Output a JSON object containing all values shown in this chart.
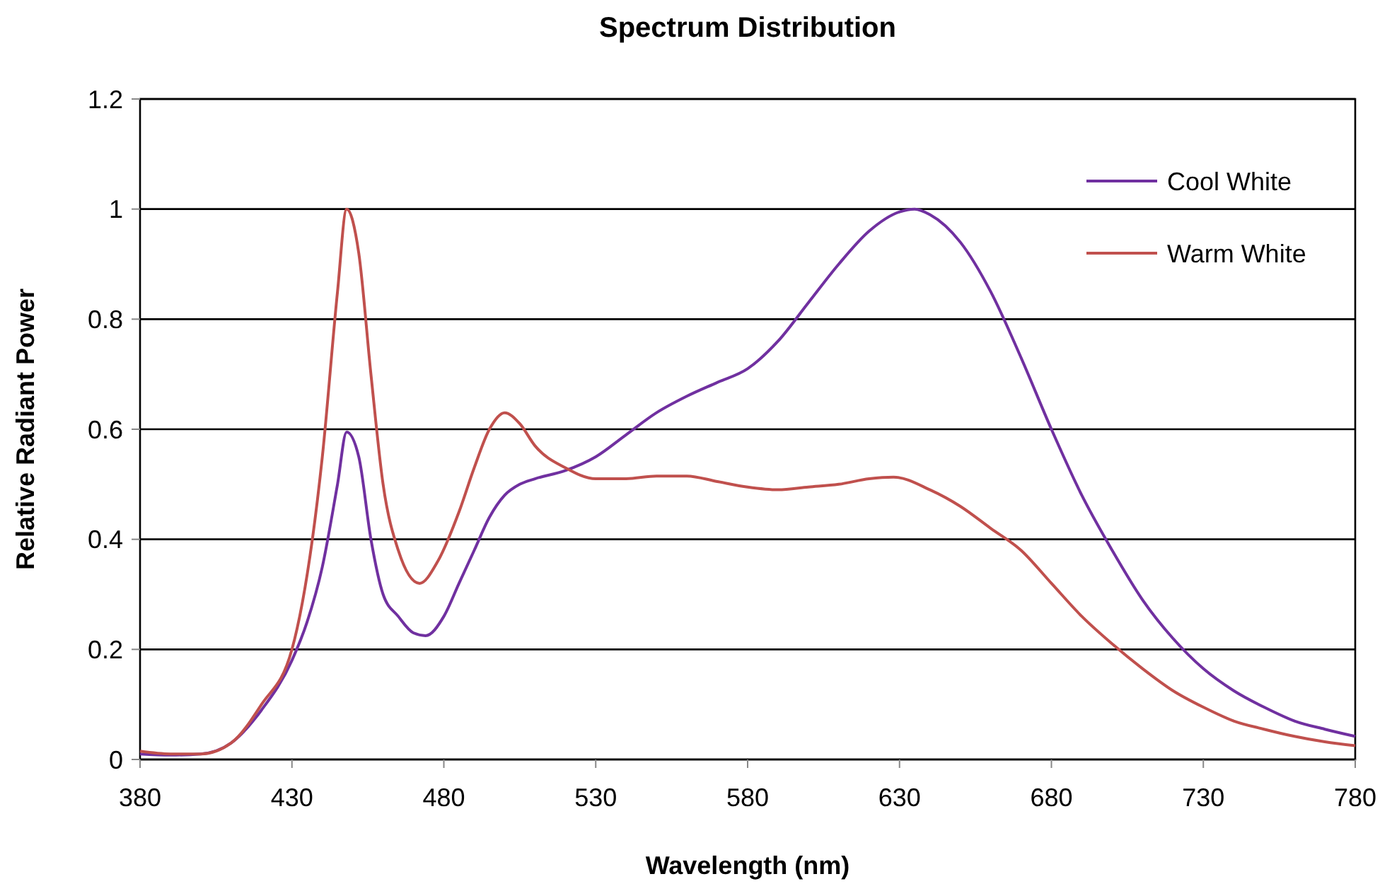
{
  "chart_data": {
    "type": "line",
    "title": "Spectrum Distribution",
    "xlabel": "Wavelength (nm)",
    "ylabel": "Relative Radiant Power",
    "xlim": [
      380,
      780
    ],
    "xticks": [
      380,
      430,
      480,
      530,
      580,
      630,
      680,
      730,
      780
    ],
    "ylim": [
      0,
      1.2
    ],
    "yticks": [
      0,
      0.2,
      0.4,
      0.6,
      0.8,
      1,
      1.2
    ],
    "grid": "y",
    "legend": "top right",
    "marker": "none",
    "line_style": "solid",
    "series": [
      {
        "name": "Cool White",
        "color": "#7030a0",
        "x": [
          380,
          390,
          400,
          410,
          420,
          430,
          435,
          440,
          445,
          448,
          452,
          456,
          460,
          465,
          470,
          474,
          480,
          485,
          490,
          495,
          500,
          505,
          510,
          520,
          530,
          540,
          550,
          560,
          570,
          580,
          590,
          600,
          610,
          620,
          630,
          635,
          640,
          650,
          660,
          670,
          680,
          690,
          700,
          710,
          720,
          730,
          740,
          750,
          760,
          770,
          780
        ],
        "values": [
          0.01,
          0.008,
          0.01,
          0.03,
          0.09,
          0.18,
          0.25,
          0.35,
          0.5,
          0.595,
          0.55,
          0.4,
          0.3,
          0.26,
          0.23,
          0.225,
          0.26,
          0.32,
          0.38,
          0.44,
          0.48,
          0.5,
          0.51,
          0.525,
          0.55,
          0.59,
          0.63,
          0.66,
          0.685,
          0.71,
          0.76,
          0.83,
          0.9,
          0.96,
          0.995,
          1.0,
          0.99,
          0.94,
          0.85,
          0.73,
          0.6,
          0.48,
          0.38,
          0.29,
          0.22,
          0.165,
          0.125,
          0.095,
          0.07,
          0.055,
          0.042
        ]
      },
      {
        "name": "Warm White",
        "color": "#c0504d",
        "x": [
          380,
          390,
          400,
          410,
          420,
          430,
          440,
          445,
          448,
          452,
          456,
          460,
          465,
          472,
          478,
          485,
          490,
          495,
          500,
          505,
          510,
          520,
          530,
          540,
          550,
          560,
          570,
          580,
          590,
          600,
          610,
          620,
          628,
          640,
          650,
          660,
          670,
          680,
          690,
          700,
          710,
          720,
          730,
          740,
          750,
          760,
          770,
          780
        ],
        "values": [
          0.015,
          0.01,
          0.01,
          0.03,
          0.1,
          0.2,
          0.55,
          0.85,
          1.0,
          0.92,
          0.7,
          0.5,
          0.38,
          0.32,
          0.36,
          0.45,
          0.53,
          0.6,
          0.63,
          0.61,
          0.57,
          0.53,
          0.51,
          0.51,
          0.515,
          0.515,
          0.505,
          0.495,
          0.49,
          0.495,
          0.5,
          0.51,
          0.513,
          0.49,
          0.46,
          0.42,
          0.38,
          0.32,
          0.26,
          0.21,
          0.165,
          0.125,
          0.095,
          0.07,
          0.055,
          0.042,
          0.032,
          0.025
        ]
      }
    ]
  }
}
